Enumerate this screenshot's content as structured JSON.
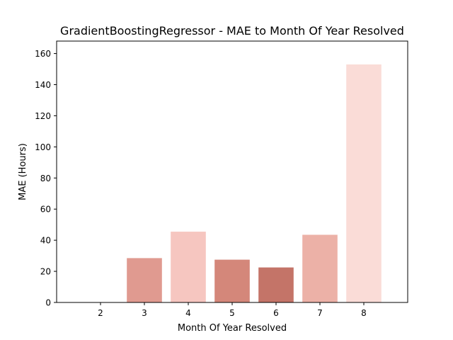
{
  "chart_data": {
    "type": "bar",
    "title": "GradientBoostingRegressor - MAE to Month Of Year Resolved",
    "xlabel": "Month Of Year Resolved",
    "ylabel": "MAE (Hours)",
    "categories": [
      "2",
      "3",
      "4",
      "5",
      "6",
      "7",
      "8"
    ],
    "values": [
      0,
      28.5,
      45.5,
      27.5,
      22.5,
      43.5,
      153
    ],
    "bar_colors": [
      "#f8d6d2",
      "#e09a90",
      "#f6c6c0",
      "#d4877a",
      "#c47468",
      "#ecb1a7",
      "#fadcd7"
    ],
    "xlim": [
      1,
      9
    ],
    "ylim": [
      0,
      168
    ],
    "yticks": [
      0,
      20,
      40,
      60,
      80,
      100,
      120,
      140,
      160
    ],
    "grid": false,
    "legend": "none"
  }
}
